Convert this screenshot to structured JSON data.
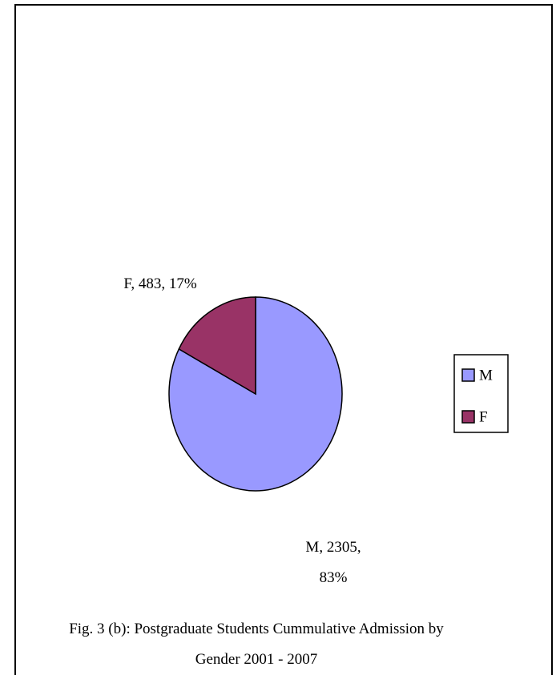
{
  "chart_data": {
    "type": "pie",
    "title": "Fig. 3 (b): Postgraduate Students Cummulative Admission by Gender  2001 - 2007",
    "categories": [
      "M",
      "F"
    ],
    "values": [
      2305,
      483
    ],
    "value_labels": [
      "M, 2305, 83%",
      "F, 483, 17%"
    ],
    "colors": [
      "#9999ff",
      "#993366"
    ],
    "legend": "right"
  }
}
